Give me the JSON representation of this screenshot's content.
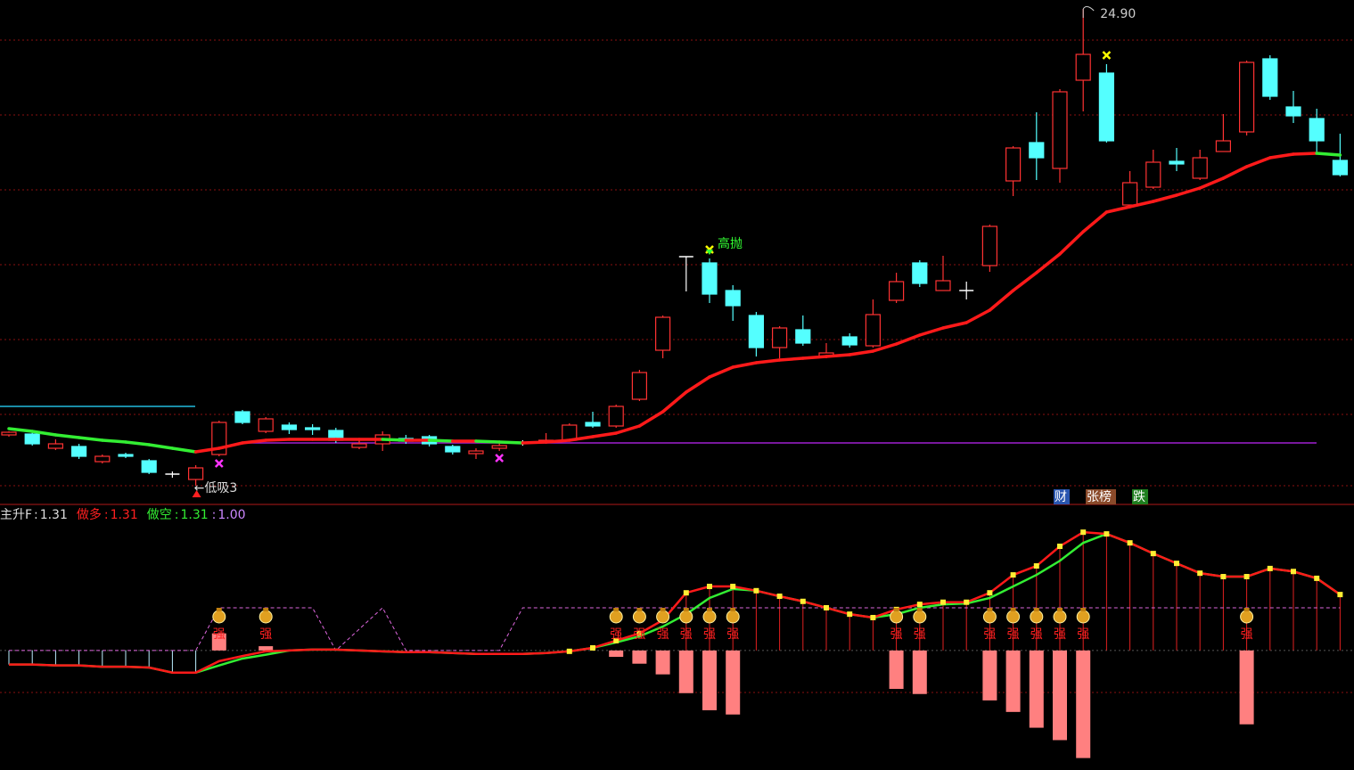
{
  "chart_data": {
    "type": "candlestick",
    "categories": [
      null,
      null,
      null,
      null,
      null,
      null,
      null,
      null,
      null,
      null,
      null,
      null,
      null,
      null,
      null,
      null,
      null,
      null,
      null,
      null,
      null,
      null,
      null,
      null,
      null,
      null,
      null,
      null,
      null,
      null,
      null,
      null,
      null,
      null,
      null,
      null,
      null,
      null,
      null,
      null,
      null,
      null,
      null,
      null,
      null,
      null,
      null,
      null,
      null,
      null,
      null,
      null,
      null,
      null,
      null,
      null,
      null,
      null
    ],
    "ylim": [
      13.8,
      25.1
    ],
    "grid": true,
    "up_color": "#ff3232",
    "down_color": "#54ffff",
    "open": [
      15.34,
      15.36,
      15.04,
      15.08,
      14.74,
      14.9,
      14.76,
      14.46,
      14.34,
      14.9,
      15.86,
      15.42,
      15.56,
      15.5,
      15.44,
      15.06,
      15.14,
      15.26,
      15.3,
      15.08,
      14.92,
      15.04,
      15.16,
      15.18,
      15.22,
      15.62,
      15.54,
      16.14,
      17.24,
      19.34,
      19.2,
      18.58,
      18.02,
      17.3,
      17.7,
      17.1,
      17.54,
      17.34,
      18.36,
      19.2,
      18.58,
      18.58,
      19.14,
      21.04,
      21.9,
      21.32,
      23.3,
      23.46,
      20.5,
      20.9,
      21.48,
      21.1,
      21.7,
      22.14,
      23.78,
      22.7,
      22.44,
      21.5
    ],
    "close": [
      15.4,
      15.14,
      15.14,
      14.86,
      14.86,
      14.86,
      14.5,
      14.46,
      14.6,
      15.62,
      15.62,
      15.7,
      15.46,
      15.46,
      15.22,
      15.14,
      15.34,
      15.2,
      15.14,
      14.96,
      14.98,
      15.1,
      15.16,
      15.22,
      15.56,
      15.54,
      15.98,
      16.74,
      17.98,
      19.34,
      18.5,
      18.24,
      17.3,
      17.74,
      17.4,
      17.18,
      17.36,
      18.04,
      18.78,
      18.74,
      18.8,
      18.58,
      20.02,
      21.78,
      21.56,
      23.04,
      23.88,
      21.94,
      21.0,
      21.46,
      21.42,
      21.56,
      21.94,
      23.7,
      22.94,
      22.5,
      21.94,
      21.18
    ],
    "high": [
      15.42,
      15.4,
      15.24,
      15.14,
      14.9,
      14.94,
      14.8,
      14.52,
      14.66,
      15.66,
      15.9,
      15.74,
      15.62,
      15.58,
      15.5,
      15.22,
      15.42,
      15.34,
      15.34,
      15.12,
      15.04,
      15.2,
      15.22,
      15.38,
      15.6,
      15.86,
      16.02,
      16.8,
      18.02,
      19.34,
      19.3,
      18.7,
      18.1,
      17.78,
      18.02,
      17.4,
      17.62,
      18.38,
      18.98,
      19.26,
      19.36,
      18.78,
      20.06,
      21.82,
      22.58,
      23.1,
      24.9,
      23.66,
      21.26,
      21.74,
      21.78,
      21.74,
      22.54,
      23.74,
      23.86,
      23.06,
      22.66,
      22.1
    ],
    "low": [
      15.3,
      15.1,
      15.0,
      14.8,
      14.7,
      14.82,
      14.46,
      14.38,
      14.2,
      14.86,
      15.58,
      15.38,
      15.36,
      15.34,
      15.16,
      15.02,
      14.98,
      15.14,
      15.08,
      14.9,
      14.8,
      14.98,
      15.1,
      15.14,
      15.2,
      15.5,
      15.5,
      16.1,
      17.06,
      18.56,
      18.3,
      17.9,
      17.1,
      17.06,
      17.34,
      17.06,
      17.3,
      17.3,
      18.3,
      18.66,
      18.58,
      18.38,
      19.0,
      20.7,
      21.06,
      21.0,
      22.6,
      21.9,
      20.46,
      20.86,
      21.26,
      21.06,
      21.7,
      22.06,
      22.86,
      22.34,
      21.66,
      21.14
    ],
    "ma": {
      "up_color": "#ff1a1a",
      "down_color": "#33ee33",
      "values": [
        15.48,
        15.42,
        15.34,
        15.28,
        15.22,
        15.18,
        15.12,
        15.04,
        14.96,
        15.04,
        15.16,
        15.22,
        15.24,
        15.24,
        15.24,
        15.24,
        15.24,
        15.22,
        15.22,
        15.2,
        15.2,
        15.18,
        15.16,
        15.18,
        15.22,
        15.3,
        15.38,
        15.54,
        15.86,
        16.3,
        16.64,
        16.86,
        16.96,
        17.02,
        17.06,
        17.1,
        17.14,
        17.22,
        17.38,
        17.58,
        17.74,
        17.86,
        18.14,
        18.58,
        18.98,
        19.4,
        19.9,
        20.34,
        20.46,
        20.58,
        20.72,
        20.88,
        21.1,
        21.36,
        21.56,
        21.64,
        21.66,
        21.62
      ]
    },
    "reference_lines": [
      {
        "value": 15.98,
        "color": "#22bbdd"
      },
      {
        "value": 15.16,
        "color": "#a020d0"
      }
    ],
    "annotations": [
      {
        "text": {
          "value": 24.9,
          "label": "24.90"
        },
        "at": 46,
        "color": "#cccccc"
      },
      {
        "text": "高抛",
        "at": 30,
        "color": "#33ff33"
      },
      {
        "text": "←低吸3",
        "at": 8,
        "color": "#dddddd"
      }
    ],
    "markers": [
      {
        "at": 9,
        "color": "#ff33ff",
        "side": "below"
      },
      {
        "at": 21,
        "color": "#ff33ff",
        "side": "below"
      },
      {
        "at": 30,
        "color": "#ffff00",
        "side": "above"
      },
      {
        "at": 47,
        "color": "#ffff00",
        "side": "above"
      }
    ],
    "tags": [
      {
        "text": "财",
        "bg": "#2a56b0"
      },
      {
        "text": "张榜",
        "bg": "#8a4a2a"
      },
      {
        "text": "跌",
        "bg": "#1f7f1f"
      }
    ],
    "indicator": {
      "ylim": [
        -2.8,
        3.4
      ],
      "separator": ":",
      "legend": [
        {
          "name": "主升F",
          "value": 1.31,
          "color": "#dddddd"
        },
        {
          "name": "做多",
          "value": 1.31,
          "color": "#ff2020"
        },
        {
          "name": "做空",
          "value": 1.31,
          "color": "#33ee33"
        },
        {
          "value": {
            "value": 1,
            "label": "1.00"
          },
          "color": "#cc88ff"
        }
      ],
      "series": [
        {
          "name": "做多",
          "color": "#ff1a1a",
          "values": [
            -0.33,
            -0.33,
            -0.35,
            -0.35,
            -0.38,
            -0.38,
            -0.4,
            -0.52,
            -0.52,
            -0.25,
            -0.13,
            -0.02,
            0,
            0.02,
            0.02,
            0,
            -0.02,
            -0.04,
            -0.04,
            -0.06,
            -0.08,
            -0.08,
            -0.08,
            -0.06,
            -0.02,
            0.06,
            0.23,
            0.4,
            0.71,
            1.35,
            1.5,
            1.5,
            1.4,
            1.27,
            1.15,
            1.0,
            0.85,
            0.77,
            0.96,
            1.08,
            1.13,
            1.13,
            1.35,
            1.77,
            1.98,
            2.44,
            2.77,
            2.73,
            2.52,
            2.27,
            2.04,
            1.81,
            1.73,
            1.73,
            1.92,
            1.85,
            1.69,
            1.31
          ]
        },
        {
          "name": "做空",
          "color": "#33ee33",
          "values": [
            -0.33,
            -0.33,
            -0.35,
            -0.35,
            -0.38,
            -0.38,
            -0.4,
            -0.52,
            -0.52,
            -0.35,
            -0.19,
            -0.1,
            0,
            0.02,
            0.02,
            0,
            -0.02,
            -0.04,
            -0.04,
            -0.06,
            -0.08,
            -0.08,
            -0.08,
            -0.06,
            -0.02,
            0.06,
            0.19,
            0.33,
            0.56,
            0.85,
            1.23,
            1.44,
            1.4,
            1.27,
            1.15,
            1.0,
            0.85,
            0.77,
            0.85,
            1.0,
            1.08,
            1.1,
            1.23,
            1.5,
            1.77,
            2.1,
            2.52,
            2.73,
            2.52,
            2.27,
            2.04,
            1.81,
            1.73,
            1.73,
            1.92,
            1.85,
            1.69,
            1.31
          ]
        }
      ],
      "level": {
        "color": "#dd66dd",
        "values": [
          0,
          0,
          0,
          0,
          0,
          0,
          0,
          0,
          0,
          1,
          1,
          1,
          1,
          1,
          0,
          0.5,
          1,
          0,
          0,
          0,
          0,
          0,
          1,
          1,
          1,
          1,
          1,
          1,
          1,
          1,
          1,
          1,
          1,
          1,
          1,
          1,
          1,
          1,
          1,
          1,
          1,
          1,
          1,
          1,
          1,
          1,
          1,
          1,
          1,
          1,
          1,
          1,
          1,
          1,
          1,
          1,
          1,
          1
        ]
      },
      "bars": {
        "color": "#ff8080",
        "values": [
          null,
          null,
          null,
          null,
          null,
          null,
          null,
          null,
          null,
          0.4,
          null,
          0.1,
          null,
          null,
          null,
          null,
          null,
          null,
          null,
          null,
          null,
          null,
          null,
          null,
          null,
          null,
          -0.15,
          -0.31,
          -0.56,
          -1,
          -1.4,
          -1.5,
          null,
          null,
          null,
          null,
          null,
          null,
          -0.9,
          -1.02,
          null,
          null,
          -1.17,
          -1.44,
          -1.81,
          -2.1,
          -2.52,
          null,
          null,
          null,
          null,
          null,
          null,
          -1.73,
          null,
          null,
          null,
          null
        ]
      },
      "signals": [
        null,
        null,
        null,
        null,
        null,
        null,
        null,
        null,
        null,
        "强",
        null,
        "强",
        null,
        null,
        null,
        null,
        null,
        null,
        null,
        null,
        null,
        null,
        null,
        null,
        null,
        null,
        "强",
        "强",
        "强",
        "强",
        "强",
        "强",
        null,
        null,
        null,
        null,
        null,
        null,
        "强",
        "强",
        null,
        null,
        "强",
        "强",
        "强",
        "强",
        "强",
        null,
        null,
        null,
        null,
        null,
        null,
        "强",
        null,
        null,
        null,
        null
      ]
    }
  }
}
